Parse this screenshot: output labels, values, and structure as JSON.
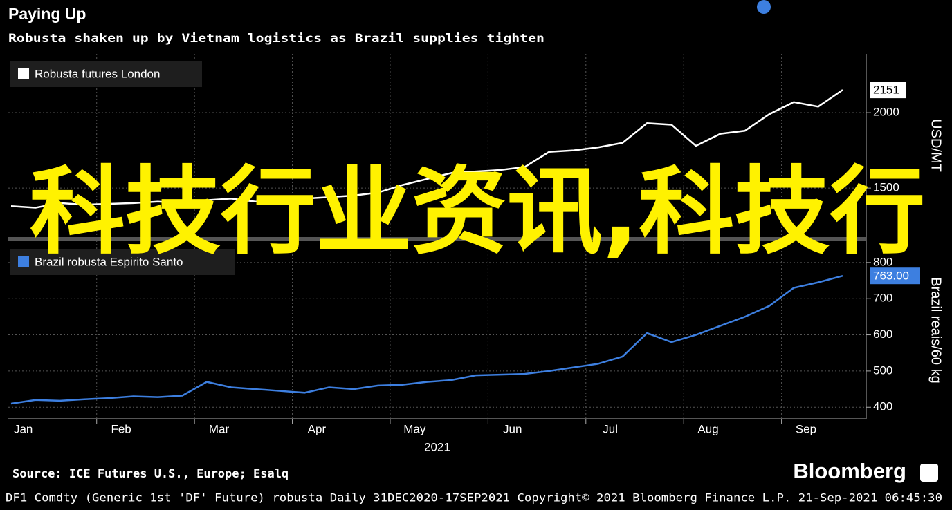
{
  "chart_data": [
    {
      "type": "line",
      "title": "Paying Up",
      "subtitle": "Robusta shaken up by Vietnam logistics as Brazil supplies tighten",
      "ylabel": "USD/MT",
      "ylim": [
        1175,
        2390
      ],
      "yticks": [
        1500,
        2000
      ],
      "grid": true,
      "legend": "upper left",
      "series": [
        {
          "name": "Robusta futures London",
          "color": "#ffffff",
          "values": [
            1380,
            1370,
            1400,
            1390,
            1395,
            1400,
            1410,
            1400,
            1420,
            1430,
            1410,
            1420,
            1430,
            1440,
            1450,
            1470,
            1520,
            1560,
            1600,
            1610,
            1620,
            1640,
            1740,
            1750,
            1770,
            1800,
            1930,
            1920,
            1780,
            1860,
            1880,
            1990,
            2070,
            2040,
            2151
          ]
        }
      ]
    },
    {
      "type": "line",
      "ylabel": "Brazil reais/60 kg",
      "xlabel": "2021",
      "ylim": [
        368,
        857
      ],
      "yticks": [
        400,
        500,
        600,
        700,
        800
      ],
      "grid": true,
      "legend": "upper left",
      "categories": [
        null,
        "Jan",
        null,
        null,
        null,
        "Feb",
        null,
        null,
        null,
        "Mar",
        null,
        null,
        null,
        "Apr",
        null,
        null,
        null,
        "May",
        null,
        null,
        null,
        "Jun",
        null,
        null,
        null,
        "Jul",
        null,
        null,
        null,
        "Aug",
        null,
        null,
        null,
        "Sep",
        null
      ],
      "series": [
        {
          "name": "Brazil robusta Espirito Santo",
          "color": "#3d7fe0",
          "values": [
            410,
            420,
            418,
            422,
            425,
            430,
            428,
            432,
            470,
            455,
            450,
            445,
            440,
            455,
            450,
            460,
            462,
            470,
            475,
            488,
            490,
            492,
            500,
            510,
            520,
            540,
            605,
            580,
            600,
            625,
            650,
            680,
            730,
            745,
            763
          ],
          "value_labels": [
            null,
            null,
            null,
            null,
            null,
            null,
            null,
            null,
            null,
            null,
            null,
            null,
            null,
            null,
            null,
            null,
            null,
            null,
            null,
            null,
            null,
            null,
            null,
            null,
            null,
            null,
            null,
            null,
            null,
            null,
            null,
            null,
            null,
            null,
            "763.00"
          ]
        }
      ]
    }
  ],
  "source": "Source: ICE Futures U.S., Europe; Esalq",
  "brand": "Bloomberg",
  "footer": "DF1 Comdty (Generic 1st 'DF' Future) robusta  Daily 31DEC2020-17SEP2021  Copyright© 2021 Bloomberg Finance L.P.  21-Sep-2021 06:45:30",
  "overlay_text": "科技行业资讯,科技行"
}
